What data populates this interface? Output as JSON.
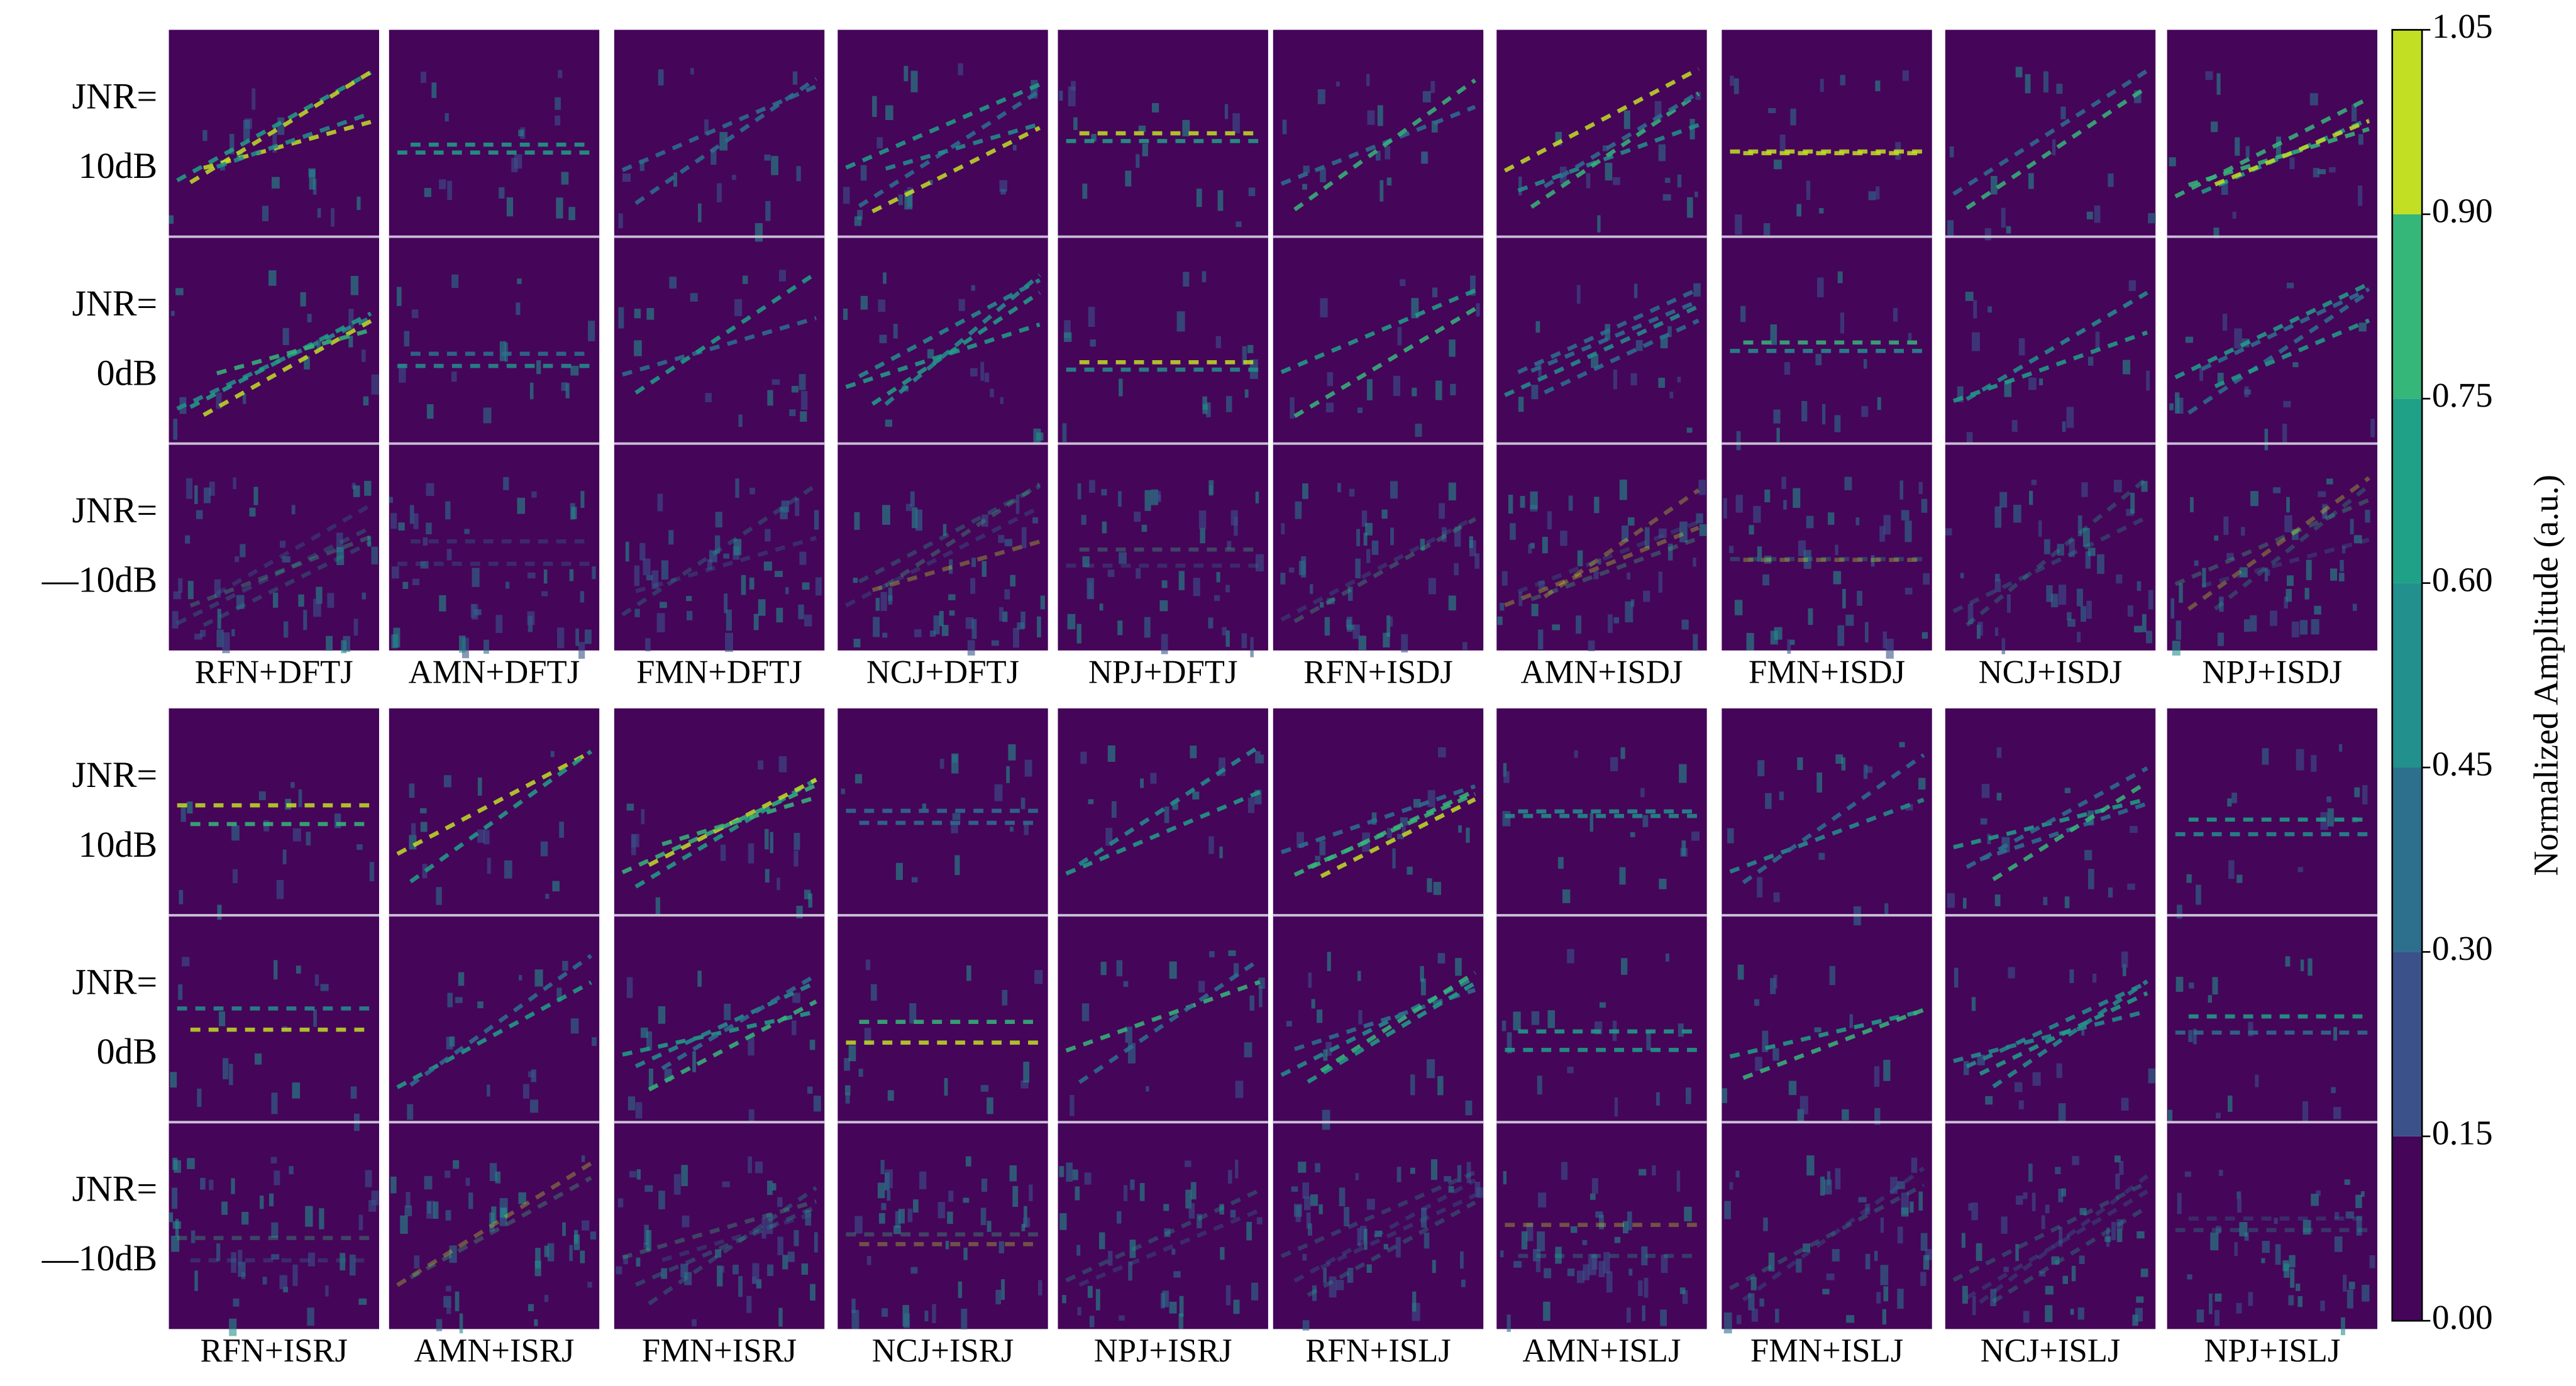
{
  "chart_data": {
    "type": "heatmap",
    "row_labels": [
      [
        "JNR=",
        "10dB"
      ],
      [
        "JNR=",
        "0dB"
      ],
      [
        "JNR=",
        "—10dB"
      ]
    ],
    "groups": [
      {
        "columns": [
          "RFN+DFTJ",
          "AMN+DFTJ",
          "FMN+DFTJ",
          "NCJ+DFTJ",
          "NPJ+DFTJ",
          "RFN+ISDJ",
          "AMN+ISDJ",
          "FMN+ISDJ",
          "NCJ+ISDJ",
          "NPJ+ISDJ"
        ]
      },
      {
        "columns": [
          "RFN+ISRJ",
          "AMN+ISRJ",
          "FMN+ISRJ",
          "NCJ+ISRJ",
          "NPJ+ISRJ",
          "RFN+ISLJ",
          "AMN+ISLJ",
          "FMN+ISLJ",
          "NCJ+ISLJ",
          "NPJ+ISLJ"
        ]
      }
    ],
    "colorbar": {
      "label": "Normalized Amplitude (a.u.)",
      "ylim": [
        0,
        1.05
      ],
      "yticks": [
        {
          "value": 0,
          "label": "0.00"
        },
        0.15,
        {
          "value": 0.3,
          "label": "0.30"
        },
        0.45,
        {
          "value": 0.6,
          "label": "0.60"
        },
        0.75,
        {
          "value": 0.9,
          "label": "0.90"
        },
        1.05
      ],
      "colors": [
        "#450559",
        "#3b518a",
        "#2c708e",
        "#22908c",
        "#1fa187",
        "#35b779",
        "#c2df23"
      ]
    }
  }
}
